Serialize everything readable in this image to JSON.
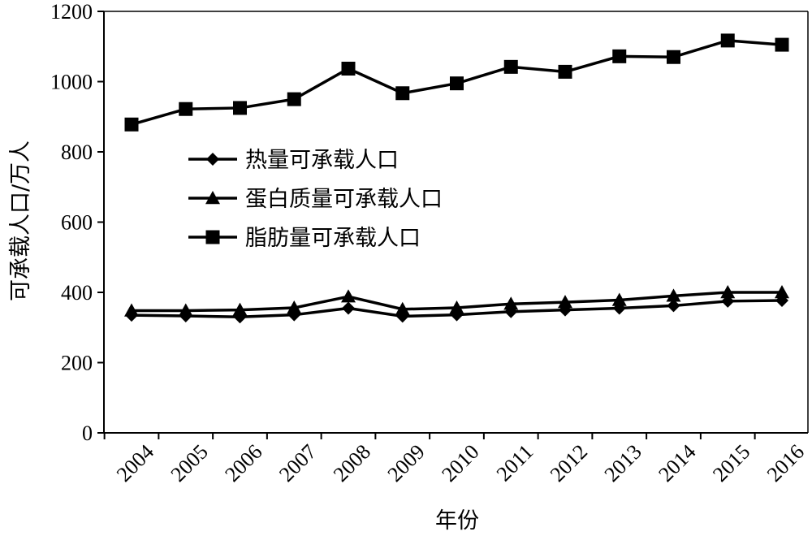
{
  "chart_data": {
    "type": "line",
    "title": "",
    "xlabel": "年份",
    "ylabel": "可承载人口/万人",
    "categories": [
      "2004",
      "2005",
      "2006",
      "2007",
      "2008",
      "2009",
      "2010",
      "2011",
      "2012",
      "2013",
      "2014",
      "2015",
      "2016"
    ],
    "ylim": [
      0,
      1200
    ],
    "yticks": [
      0,
      200,
      400,
      600,
      800,
      1000,
      1200
    ],
    "grid": false,
    "legend_position": "center-left",
    "series": [
      {
        "name": "热量可承载人口",
        "marker": "diamond",
        "color": "#000000",
        "values": [
          335,
          333,
          330,
          336,
          355,
          332,
          336,
          345,
          350,
          355,
          362,
          375,
          377
        ]
      },
      {
        "name": "蛋白质量可承载人口",
        "marker": "triangle",
        "color": "#000000",
        "values": [
          348,
          348,
          350,
          356,
          388,
          352,
          356,
          367,
          372,
          378,
          390,
          400,
          400
        ]
      },
      {
        "name": "脂肪量可承载人口",
        "marker": "square",
        "color": "#000000",
        "values": [
          878,
          922,
          925,
          950,
          1037,
          967,
          995,
          1042,
          1028,
          1072,
          1070,
          1117,
          1105
        ]
      }
    ]
  }
}
